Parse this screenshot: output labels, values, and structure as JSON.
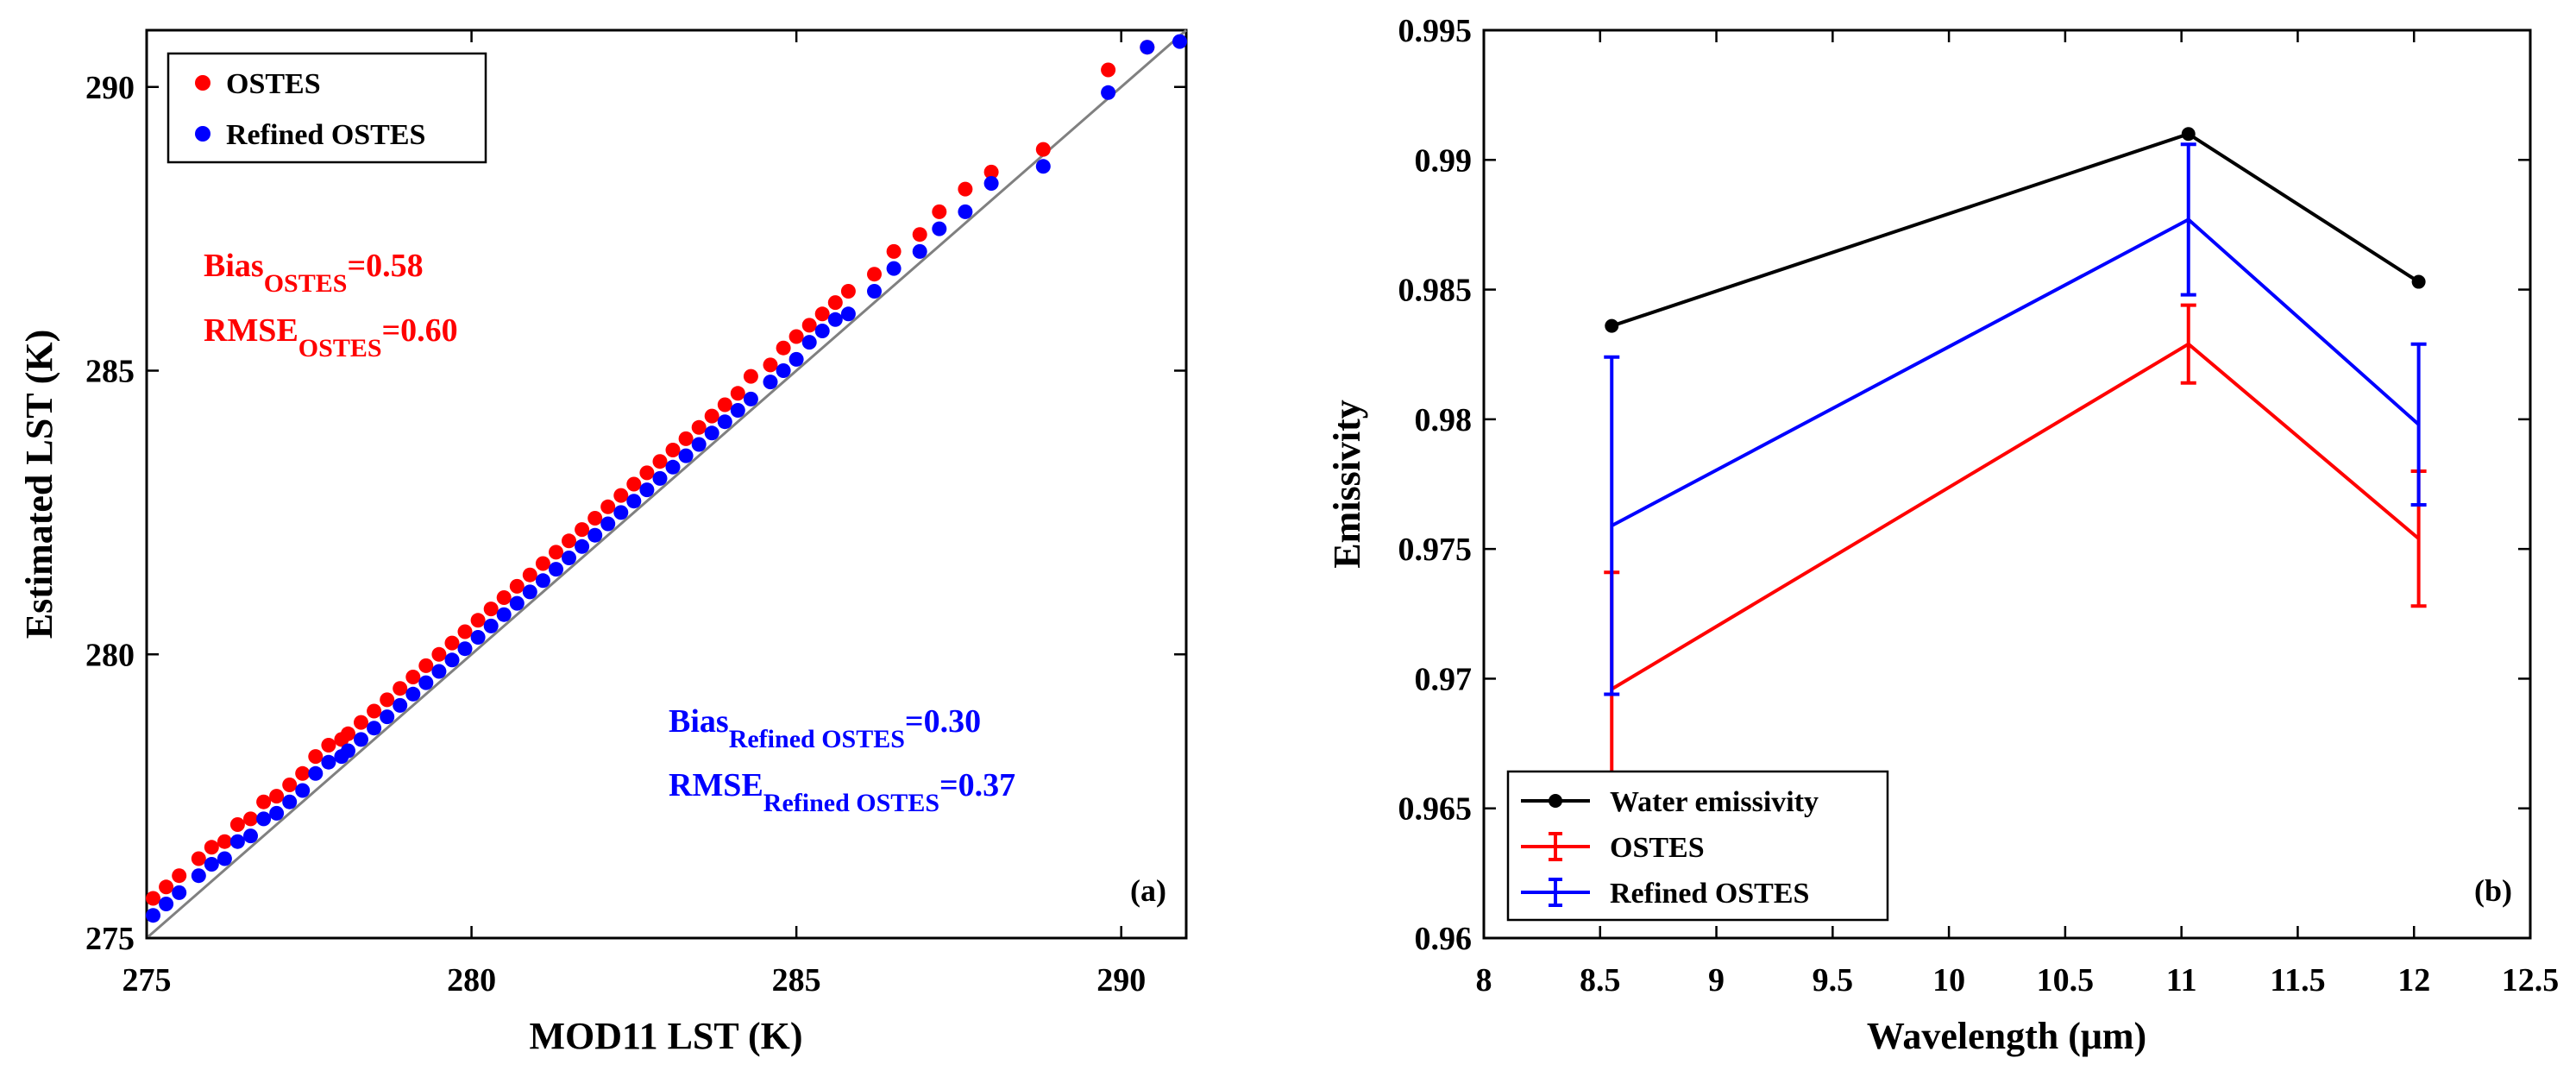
{
  "figure": {
    "panel_a": {
      "xlabel": "MOD11 LST (K)",
      "ylabel": "Estimated LST (K)",
      "panel_label": "(a)"
    },
    "panel_b": {
      "xlabel": "Wavelength (μm)",
      "ylabel": "Emissivity",
      "panel_label": "(b)"
    }
  },
  "chart_data": [
    {
      "type": "scatter",
      "title": "",
      "xlabel": "MOD11 LST (K)",
      "ylabel": "Estimated LST (K)",
      "xlim": [
        275,
        291
      ],
      "ylim": [
        275,
        291
      ],
      "xticks": [
        275,
        280,
        285,
        290
      ],
      "yticks": [
        275,
        280,
        285,
        290
      ],
      "grid": false,
      "legend_position": "top-left",
      "reference_line": "1:1",
      "colors": {
        "OSTES": "#ff0000",
        "Refined OSTES": "#0000ff",
        "reference": "#808080"
      },
      "series": [
        {
          "name": "OSTES",
          "points": [
            [
              275.1,
              275.7
            ],
            [
              275.3,
              275.9
            ],
            [
              275.5,
              276.1
            ],
            [
              275.8,
              276.4
            ],
            [
              276.0,
              276.6
            ],
            [
              276.2,
              276.7
            ],
            [
              276.4,
              277.0
            ],
            [
              276.6,
              277.1
            ],
            [
              276.8,
              277.4
            ],
            [
              277.0,
              277.5
            ],
            [
              277.2,
              277.7
            ],
            [
              277.4,
              277.9
            ],
            [
              277.6,
              278.2
            ],
            [
              277.8,
              278.4
            ],
            [
              278.0,
              278.5
            ],
            [
              278.1,
              278.6
            ],
            [
              278.3,
              278.8
            ],
            [
              278.5,
              279.0
            ],
            [
              278.7,
              279.2
            ],
            [
              278.9,
              279.4
            ],
            [
              279.1,
              279.6
            ],
            [
              279.3,
              279.8
            ],
            [
              279.5,
              280.0
            ],
            [
              279.7,
              280.2
            ],
            [
              279.9,
              280.4
            ],
            [
              280.1,
              280.6
            ],
            [
              280.3,
              280.8
            ],
            [
              280.5,
              281.0
            ],
            [
              280.7,
              281.2
            ],
            [
              280.9,
              281.4
            ],
            [
              281.1,
              281.6
            ],
            [
              281.3,
              281.8
            ],
            [
              281.5,
              282.0
            ],
            [
              281.7,
              282.2
            ],
            [
              281.9,
              282.4
            ],
            [
              282.1,
              282.6
            ],
            [
              282.3,
              282.8
            ],
            [
              282.5,
              283.0
            ],
            [
              282.7,
              283.2
            ],
            [
              282.9,
              283.4
            ],
            [
              283.1,
              283.6
            ],
            [
              283.3,
              283.8
            ],
            [
              283.5,
              284.0
            ],
            [
              283.7,
              284.2
            ],
            [
              283.9,
              284.4
            ],
            [
              284.1,
              284.6
            ],
            [
              284.3,
              284.9
            ],
            [
              284.6,
              285.1
            ],
            [
              284.8,
              285.4
            ],
            [
              285.0,
              285.6
            ],
            [
              285.2,
              285.8
            ],
            [
              285.4,
              286.0
            ],
            [
              285.6,
              286.2
            ],
            [
              285.8,
              286.4
            ],
            [
              286.2,
              286.7
            ],
            [
              286.5,
              287.1
            ],
            [
              286.9,
              287.4
            ],
            [
              287.2,
              287.8
            ],
            [
              287.6,
              288.2
            ],
            [
              288.0,
              288.5
            ],
            [
              288.8,
              288.9
            ],
            [
              289.8,
              290.3
            ],
            [
              290.4,
              290.7
            ]
          ]
        },
        {
          "name": "Refined OSTES",
          "points": [
            [
              275.1,
              275.4
            ],
            [
              275.3,
              275.6
            ],
            [
              275.5,
              275.8
            ],
            [
              275.8,
              276.1
            ],
            [
              276.0,
              276.3
            ],
            [
              276.2,
              276.4
            ],
            [
              276.4,
              276.7
            ],
            [
              276.6,
              276.8
            ],
            [
              276.8,
              277.1
            ],
            [
              277.0,
              277.2
            ],
            [
              277.2,
              277.4
            ],
            [
              277.4,
              277.6
            ],
            [
              277.6,
              277.9
            ],
            [
              277.8,
              278.1
            ],
            [
              278.0,
              278.2
            ],
            [
              278.1,
              278.3
            ],
            [
              278.3,
              278.5
            ],
            [
              278.5,
              278.7
            ],
            [
              278.7,
              278.9
            ],
            [
              278.9,
              279.1
            ],
            [
              279.1,
              279.3
            ],
            [
              279.3,
              279.5
            ],
            [
              279.5,
              279.7
            ],
            [
              279.7,
              279.9
            ],
            [
              279.9,
              280.1
            ],
            [
              280.1,
              280.3
            ],
            [
              280.3,
              280.5
            ],
            [
              280.5,
              280.7
            ],
            [
              280.7,
              280.9
            ],
            [
              280.9,
              281.1
            ],
            [
              281.1,
              281.3
            ],
            [
              281.3,
              281.5
            ],
            [
              281.5,
              281.7
            ],
            [
              281.7,
              281.9
            ],
            [
              281.9,
              282.1
            ],
            [
              282.1,
              282.3
            ],
            [
              282.3,
              282.5
            ],
            [
              282.5,
              282.7
            ],
            [
              282.7,
              282.9
            ],
            [
              282.9,
              283.1
            ],
            [
              283.1,
              283.3
            ],
            [
              283.3,
              283.5
            ],
            [
              283.5,
              283.7
            ],
            [
              283.7,
              283.9
            ],
            [
              283.9,
              284.1
            ],
            [
              284.1,
              284.3
            ],
            [
              284.3,
              284.5
            ],
            [
              284.6,
              284.8
            ],
            [
              284.8,
              285.0
            ],
            [
              285.0,
              285.2
            ],
            [
              285.2,
              285.5
            ],
            [
              285.4,
              285.7
            ],
            [
              285.6,
              285.9
            ],
            [
              285.8,
              286.0
            ],
            [
              286.2,
              286.4
            ],
            [
              286.5,
              286.8
            ],
            [
              286.9,
              287.1
            ],
            [
              287.2,
              287.5
            ],
            [
              287.6,
              287.8
            ],
            [
              288.0,
              288.3
            ],
            [
              288.8,
              288.6
            ],
            [
              289.8,
              289.9
            ],
            [
              290.4,
              290.7
            ],
            [
              290.9,
              290.8
            ]
          ]
        }
      ],
      "annotations": [
        {
          "main": "Bias",
          "sub": "OSTES",
          "value": "=0.58",
          "color": "#ff0000"
        },
        {
          "main": "RMSE",
          "sub": "OSTES",
          "value": "=0.60",
          "color": "#ff0000"
        },
        {
          "main": "Bias",
          "sub": "Refined OSTES",
          "value": "=0.30",
          "color": "#0000ff"
        },
        {
          "main": "RMSE",
          "sub": "Refined OSTES",
          "value": "=0.37",
          "color": "#0000ff"
        }
      ]
    },
    {
      "type": "line",
      "title": "",
      "xlabel": "Wavelength (μm)",
      "ylabel": "Emissivity",
      "xlim": [
        8,
        12.5
      ],
      "ylim": [
        0.96,
        0.995
      ],
      "xticks": [
        8,
        8.5,
        9,
        9.5,
        10,
        10.5,
        11,
        11.5,
        12,
        12.5
      ],
      "yticks": [
        0.96,
        0.965,
        0.97,
        0.975,
        0.98,
        0.985,
        0.99,
        0.995
      ],
      "grid": false,
      "legend_position": "bottom-left",
      "x": [
        8.55,
        11.03,
        12.02
      ],
      "series": [
        {
          "name": "Water emissivity",
          "color": "#000000",
          "marker": "dot",
          "values": [
            0.9836,
            0.991,
            0.9853
          ]
        },
        {
          "name": "OSTES",
          "color": "#ff0000",
          "marker": "errorbar",
          "values": [
            0.9696,
            0.9829,
            0.9754
          ],
          "error": [
            0.0045,
            0.0015,
            0.0026
          ]
        },
        {
          "name": "Refined OSTES",
          "color": "#0000ff",
          "marker": "errorbar",
          "values": [
            0.9759,
            0.9877,
            0.9798
          ],
          "error": [
            0.0065,
            0.0029,
            0.0031
          ]
        }
      ]
    }
  ]
}
